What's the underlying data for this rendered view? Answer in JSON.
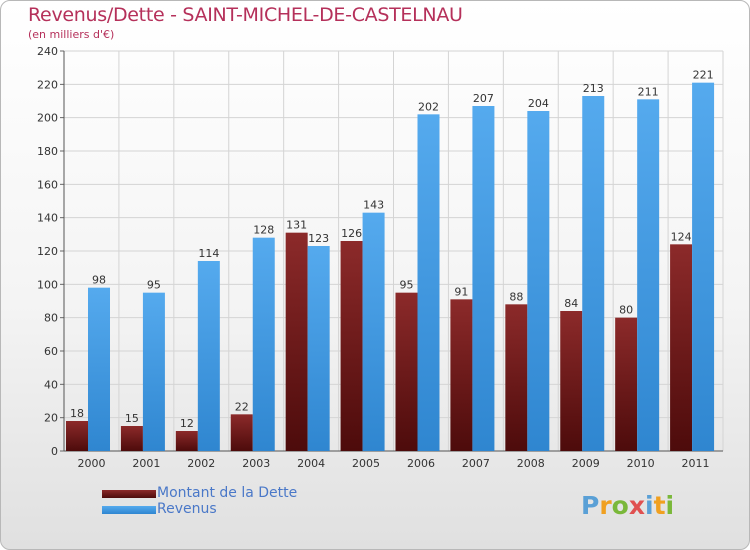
{
  "header": {
    "title": "Revenus/Dette - SAINT-MICHEL-DE-CASTELNAU",
    "subtitle": "(en milliers d'€)"
  },
  "colors": {
    "debt": "#6e1a1a",
    "revenue": "#4aa0e6",
    "title": "#b5305a",
    "legend_text": "#4a78c8"
  },
  "chart_data": {
    "type": "bar",
    "title": "Revenus/Dette - SAINT-MICHEL-DE-CASTELNAU",
    "subtitle": "(en milliers d'€)",
    "xlabel": "",
    "ylabel": "",
    "categories": [
      "2000",
      "2001",
      "2002",
      "2003",
      "2004",
      "2005",
      "2006",
      "2007",
      "2008",
      "2009",
      "2010",
      "2011"
    ],
    "series": [
      {
        "name": "Montant de la Dette",
        "values": [
          18,
          15,
          12,
          22,
          131,
          126,
          95,
          91,
          88,
          84,
          80,
          124
        ]
      },
      {
        "name": "Revenus",
        "values": [
          98,
          95,
          114,
          128,
          123,
          143,
          202,
          207,
          204,
          213,
          211,
          221
        ]
      }
    ],
    "ylim": [
      0,
      240
    ],
    "yticks": [
      0,
      20,
      40,
      60,
      80,
      100,
      120,
      140,
      160,
      180,
      200,
      220,
      240
    ],
    "grid": true,
    "legend_position": "bottom-left"
  },
  "legend": {
    "items": [
      {
        "label": "Montant de la Dette"
      },
      {
        "label": "Revenus"
      }
    ]
  },
  "logo": {
    "text": "Proxiti",
    "letter_colors": [
      "#5aa0d6",
      "#f0a020",
      "#7ab83a",
      "#e05050",
      "#5aa0d6",
      "#f0a020",
      "#7ab83a"
    ]
  }
}
